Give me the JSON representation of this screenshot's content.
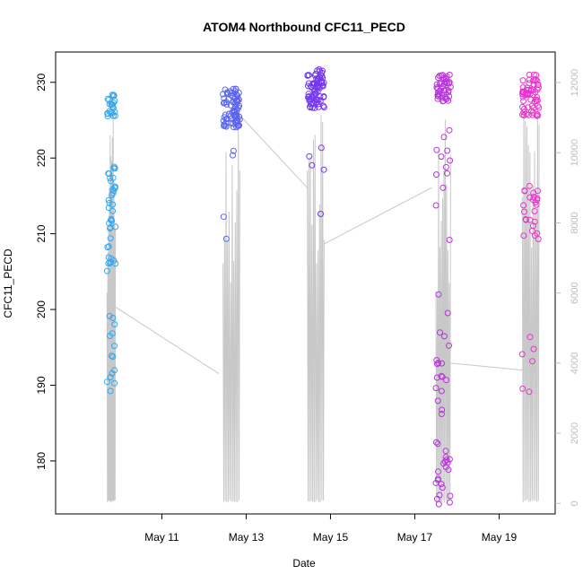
{
  "chart_data": {
    "type": "scatter",
    "title": "ATOM4 Northbound CFC11_PECD",
    "xlabel": "Date",
    "ylabel": "CFC11_PECD",
    "x_ticks": [
      "May 11",
      "May 13",
      "May 15",
      "May 17",
      "May 19"
    ],
    "x_tick_days": [
      11,
      13,
      15,
      17,
      19
    ],
    "xlim_days": [
      8.48,
      20.33
    ],
    "ylim": [
      173,
      234
    ],
    "y_ticks": [
      180,
      190,
      200,
      210,
      220,
      230
    ],
    "y2_ticks": [
      0,
      2000,
      4000,
      6000,
      8000,
      10000,
      12000
    ],
    "y2lim": [
      -300,
      12870
    ],
    "grid": false,
    "legend": "none",
    "colors": {
      "point_start": "#33aaee",
      "point_mid": "#7733ee",
      "point_end": "#ee33cc",
      "altitude_line": "#c8c8c8",
      "axis": "#000000",
      "right_axis": "#bdbdbd"
    },
    "flights": [
      {
        "start_day": 9.7,
        "end_day": 9.9,
        "groups": [
          {
            "min": 225.5,
            "max": 228.5,
            "n": 24
          },
          {
            "min": 205,
            "max": 219,
            "n": 38
          },
          {
            "min": 189,
            "max": 200,
            "n": 14
          }
        ]
      },
      {
        "start_day": 12.45,
        "end_day": 12.85,
        "groups": [
          {
            "min": 224,
            "max": 229.3,
            "n": 75
          },
          {
            "min": 209,
            "max": 223,
            "n": 4
          }
        ]
      },
      {
        "start_day": 14.45,
        "end_day": 14.85,
        "groups": [
          {
            "min": 226.5,
            "max": 231.8,
            "n": 80
          },
          {
            "min": 212.5,
            "max": 225,
            "n": 5
          }
        ]
      },
      {
        "start_day": 17.5,
        "end_day": 17.85,
        "groups": [
          {
            "min": 227.5,
            "max": 231,
            "n": 45
          },
          {
            "min": 209,
            "max": 225,
            "n": 12
          },
          {
            "min": 186,
            "max": 202.5,
            "n": 18
          },
          {
            "min": 174,
            "max": 183,
            "n": 22
          }
        ]
      },
      {
        "start_day": 19.55,
        "end_day": 19.95,
        "groups": [
          {
            "min": 225.5,
            "max": 231.2,
            "n": 60
          },
          {
            "min": 209,
            "max": 216.8,
            "n": 25
          },
          {
            "min": 187.5,
            "max": 196.5,
            "n": 6
          }
        ]
      }
    ],
    "altitude_connectors": [
      [
        [
          9.9,
          5600
        ],
        [
          12.35,
          3700
        ]
      ],
      [
        [
          12.9,
          11000
        ],
        [
          14.45,
          9000
        ]
      ],
      [
        [
          14.85,
          7400
        ],
        [
          17.4,
          9000
        ]
      ],
      [
        [
          17.85,
          4000
        ],
        [
          19.55,
          3800
        ]
      ]
    ]
  }
}
